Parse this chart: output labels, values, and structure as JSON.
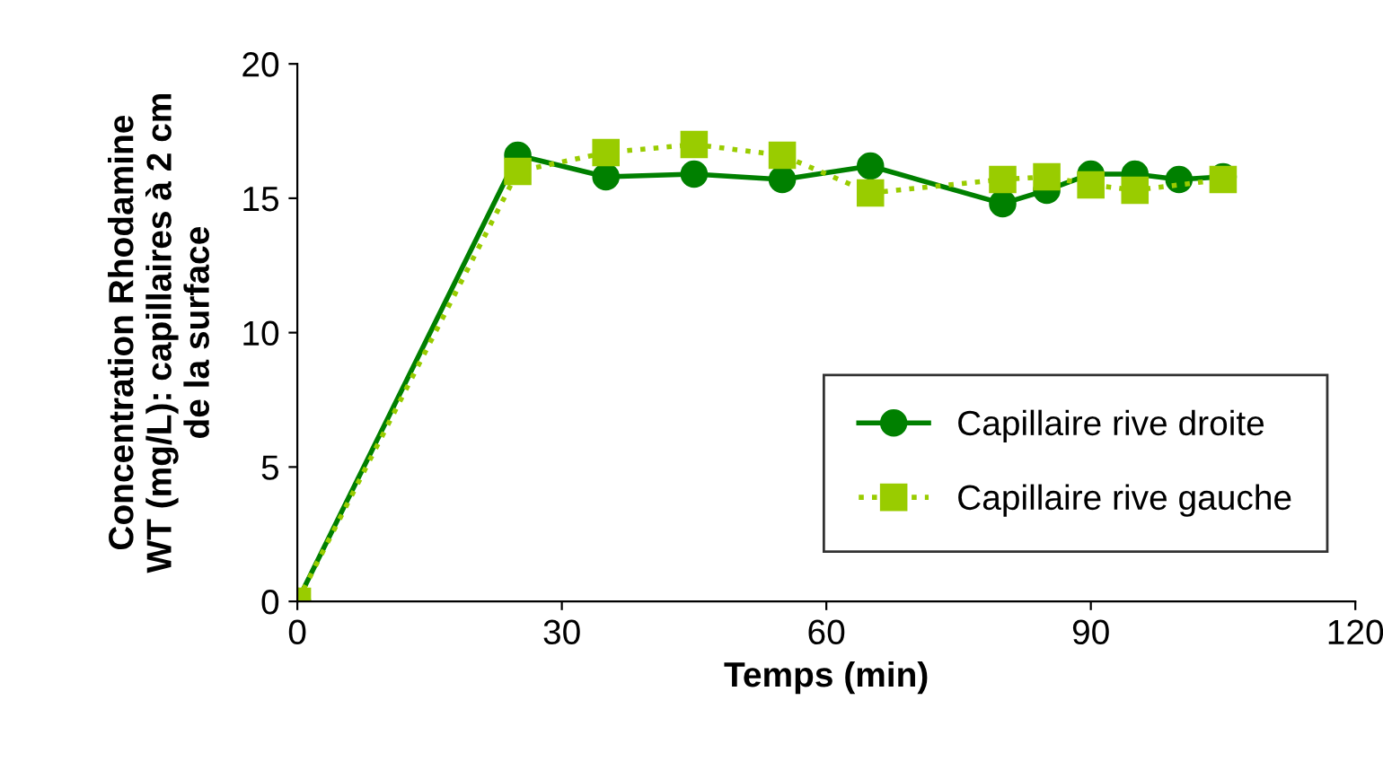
{
  "chart_data": {
    "type": "line",
    "xlabel": "Temps (min)",
    "ylabel": "Concentration Rhodamine\nWT (mg/L): capillaires à 2 cm\nde la surface",
    "series": [
      {
        "name": "Capillaire rive droite",
        "color": "#008000",
        "marker": "circle",
        "line_style": "solid",
        "x": [
          0,
          25,
          35,
          45,
          55,
          65,
          80,
          85,
          90,
          95,
          100,
          105
        ],
        "values": [
          0,
          16.6,
          15.8,
          15.9,
          15.7,
          16.2,
          14.8,
          15.3,
          15.9,
          15.9,
          15.7,
          15.8
        ]
      },
      {
        "name": "Capillaire rive gauche",
        "color": "#99cc00",
        "marker": "square",
        "line_style": "dotted",
        "x": [
          0,
          25,
          35,
          45,
          55,
          65,
          80,
          85,
          90,
          95,
          105
        ],
        "values": [
          0,
          16.0,
          16.7,
          17.0,
          16.6,
          15.2,
          15.7,
          15.8,
          15.5,
          15.3,
          15.7
        ]
      }
    ],
    "xlim": [
      0,
      120
    ],
    "xticks": [
      0,
      30,
      60,
      90,
      120
    ],
    "ylim": [
      0,
      20
    ],
    "yticks": [
      0,
      5,
      10,
      15,
      20
    ],
    "grid": false,
    "legend": "bottom right"
  }
}
